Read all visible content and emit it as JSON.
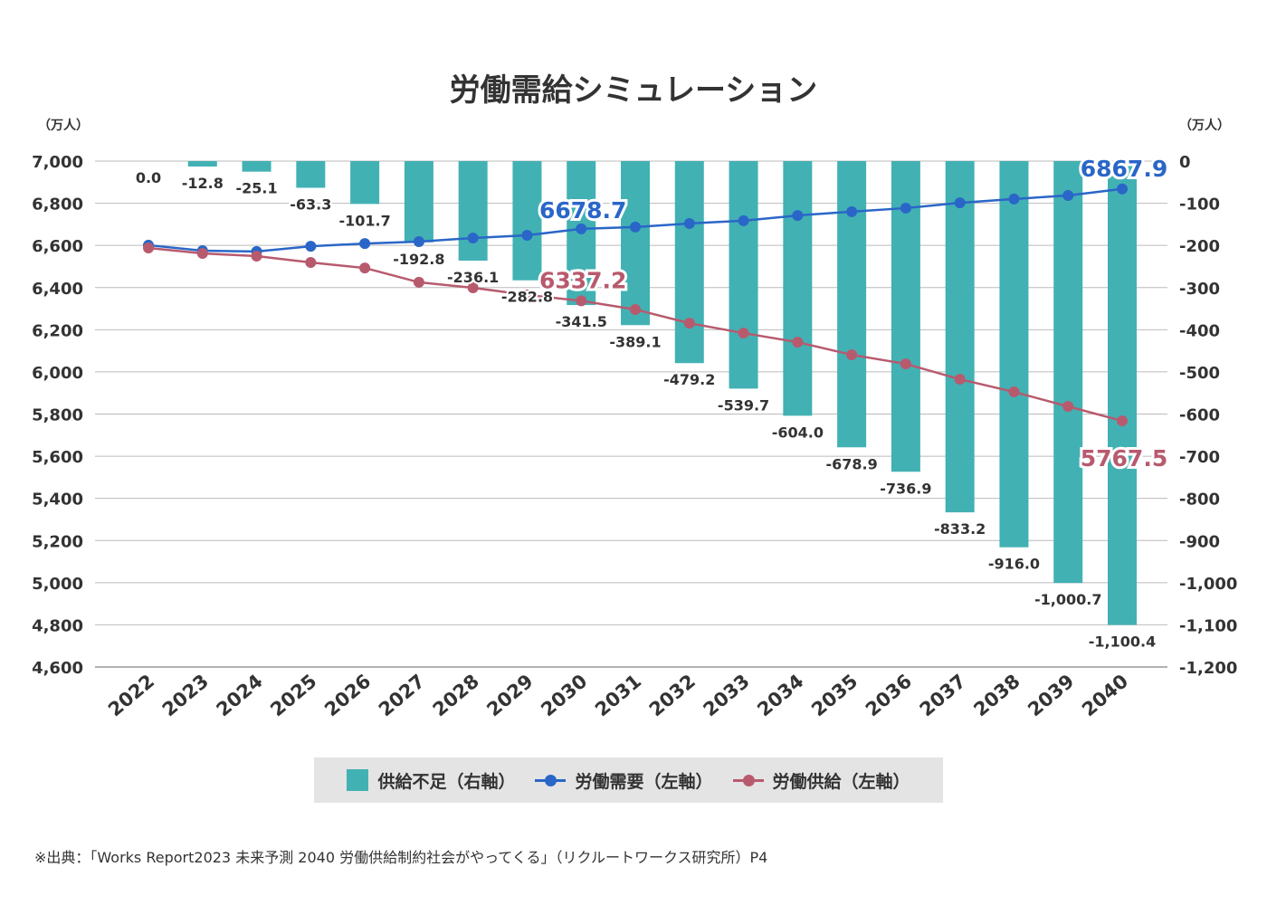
{
  "chart_data": {
    "type": "bar+line",
    "title": "労働需給シミュレーション",
    "left_unit": "（万人）",
    "right_unit": "（万人）",
    "categories": [
      "2022",
      "2023",
      "2024",
      "2025",
      "2026",
      "2027",
      "2028",
      "2029",
      "2030",
      "2031",
      "2032",
      "2033",
      "2034",
      "2035",
      "2036",
      "2037",
      "2038",
      "2039",
      "2040"
    ],
    "left_axis": {
      "ylim": [
        4600,
        7000
      ],
      "ticks": [
        "4,600",
        "4,800",
        "5,000",
        "5,200",
        "5,400",
        "5,600",
        "5,800",
        "6,000",
        "6,200",
        "6,400",
        "6,600",
        "6,800",
        "7,000"
      ]
    },
    "right_axis": {
      "ylim": [
        -1200,
        0
      ],
      "ticks": [
        "-1,200",
        "-1,100",
        "-1,000",
        "-900",
        "-800",
        "-700",
        "-600",
        "-500",
        "-400",
        "-300",
        "-200",
        "-100",
        "0"
      ]
    },
    "grid": true,
    "series": [
      {
        "name": "供給不足（右軸）",
        "type": "bar",
        "axis": "right",
        "color": "#42b1b3",
        "values": [
          0.0,
          -12.8,
          -25.1,
          -63.3,
          -101.7,
          -192.8,
          -236.1,
          -282.8,
          -341.5,
          -389.1,
          -479.2,
          -539.7,
          -604.0,
          -678.9,
          -736.9,
          -833.2,
          -916.0,
          -1000.7,
          -1100.4
        ],
        "labels": [
          "0.0",
          "-12.8",
          "-25.1",
          "-63.3",
          "-101.7",
          "-192.8",
          "-236.1",
          "-282.8",
          "-341.5",
          "-389.1",
          "-479.2",
          "-539.7",
          "-604.0",
          "-678.9",
          "-736.9",
          "-833.2",
          "-916.0",
          "-1,000.7",
          "-1,100.4"
        ]
      },
      {
        "name": "労働需要（左軸）",
        "type": "line",
        "axis": "left",
        "color": "#2a66c8",
        "values": [
          6601,
          6575,
          6571,
          6596,
          6609,
          6618,
          6635,
          6648,
          6678.7,
          6687,
          6704,
          6717,
          6742,
          6760,
          6777,
          6802,
          6820,
          6837,
          6867.9
        ],
        "highlight_labels": [
          {
            "category": "2030",
            "text": "6678.7"
          },
          {
            "category": "2040",
            "text": "6867.9"
          }
        ]
      },
      {
        "name": "労働供給（左軸）",
        "type": "line",
        "axis": "left",
        "color": "#b85a6e",
        "values": [
          6588,
          6562,
          6549,
          6519,
          6493,
          6425,
          6399,
          6365,
          6337.2,
          6296,
          6231,
          6184,
          6141,
          6081,
          6038,
          5965,
          5905,
          5836,
          5767.5
        ],
        "highlight_labels": [
          {
            "category": "2030",
            "text": "6337.2"
          },
          {
            "category": "2040",
            "text": "5767.5"
          }
        ]
      }
    ],
    "legend_position": "bottom"
  },
  "source": "※出典：「Works Report2023 未来予測 2040 労働供給制約社会がやってくる」（リクルートワークス研究所）P4"
}
